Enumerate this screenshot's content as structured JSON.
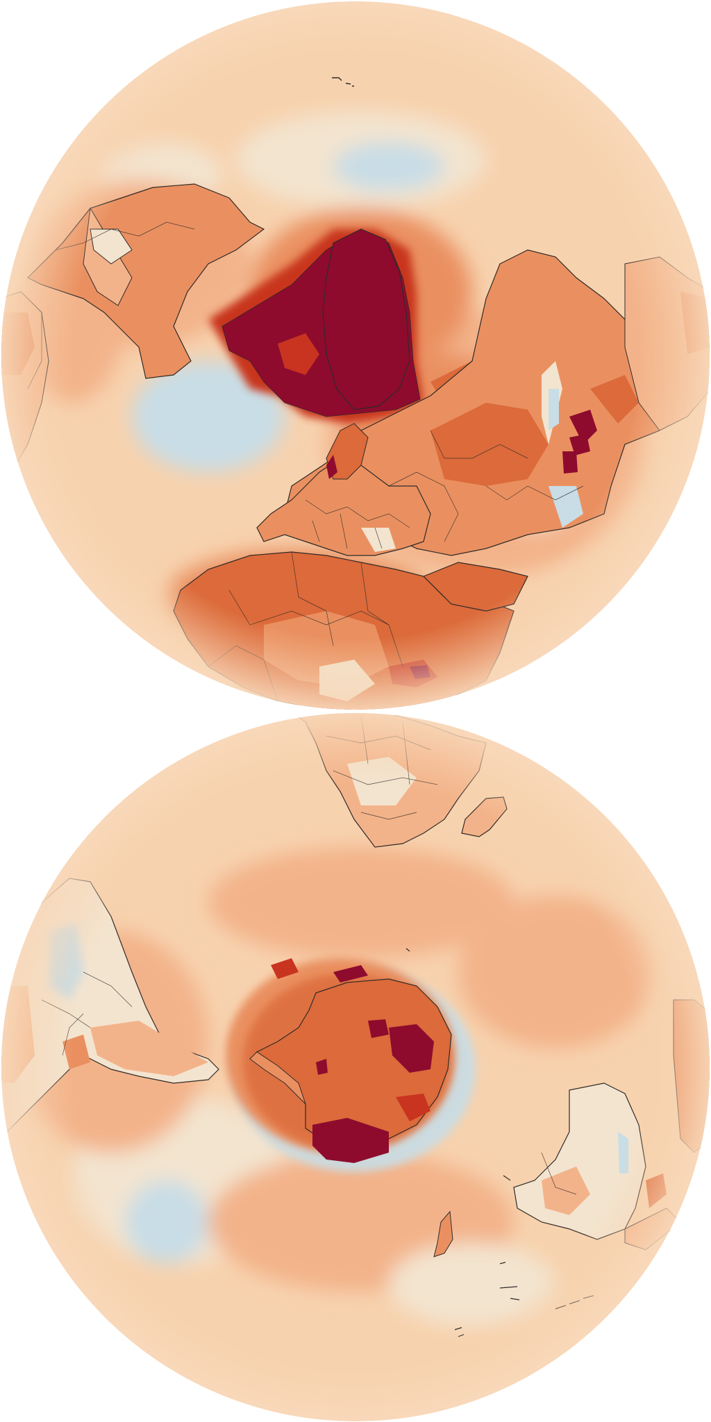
{
  "figure": {
    "panels": [
      {
        "id": "north",
        "hemisphere": "northern",
        "projection": "orthographic",
        "center_feature": "arctic"
      },
      {
        "id": "south",
        "hemisphere": "southern",
        "projection": "orthographic",
        "center_feature": "antarctica"
      }
    ],
    "colors": {
      "background": "#ffffff",
      "ocean_base": "#f7d2ae",
      "near_zero": "#f3e4cf",
      "slight_cool": "#e4eef0",
      "cool": "#c8dde6",
      "warm_1": "#f3b38a",
      "warm_2": "#ea9060",
      "warm_3": "#dc6a3a",
      "hot": "#c8341f",
      "extreme": "#8e0b2e",
      "coastline": "#2f2a28"
    }
  }
}
